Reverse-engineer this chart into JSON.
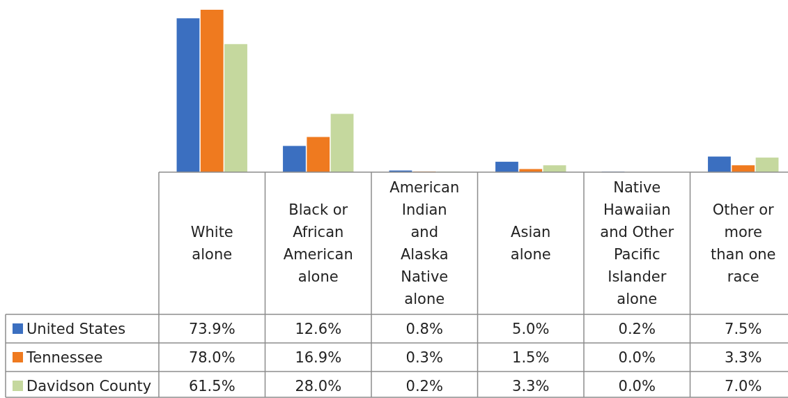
{
  "chart_data": {
    "type": "bar",
    "categories": [
      "White alone",
      "Black or African American alone",
      "American Indian and Alaska Native alone",
      "Asian alone",
      "Native Hawaiian and Other Pacific Islander alone",
      "Other or more than one race"
    ],
    "series": [
      {
        "name": "United States",
        "color": "#3b6fc0",
        "values": [
          73.9,
          12.6,
          0.8,
          5.0,
          0.2,
          7.5
        ],
        "value_labels": [
          "73.9%",
          "12.6%",
          "0.8%",
          "5.0%",
          "0.2%",
          "7.5%"
        ]
      },
      {
        "name": "Tennessee",
        "color": "#ef7a1f",
        "values": [
          78.0,
          16.9,
          0.3,
          1.5,
          0.0,
          3.3
        ],
        "value_labels": [
          "78.0%",
          "16.9%",
          "0.3%",
          "1.5%",
          "0.0%",
          "3.3%"
        ]
      },
      {
        "name": "Davidson County",
        "color": "#c5d89e",
        "values": [
          61.5,
          28.0,
          0.2,
          3.3,
          0.0,
          7.0
        ],
        "value_labels": [
          "61.5%",
          "28.0%",
          "0.2%",
          "3.3%",
          "0.0%",
          "7.0%"
        ]
      }
    ],
    "legend": "bottom",
    "tick_labels": "x"
  }
}
